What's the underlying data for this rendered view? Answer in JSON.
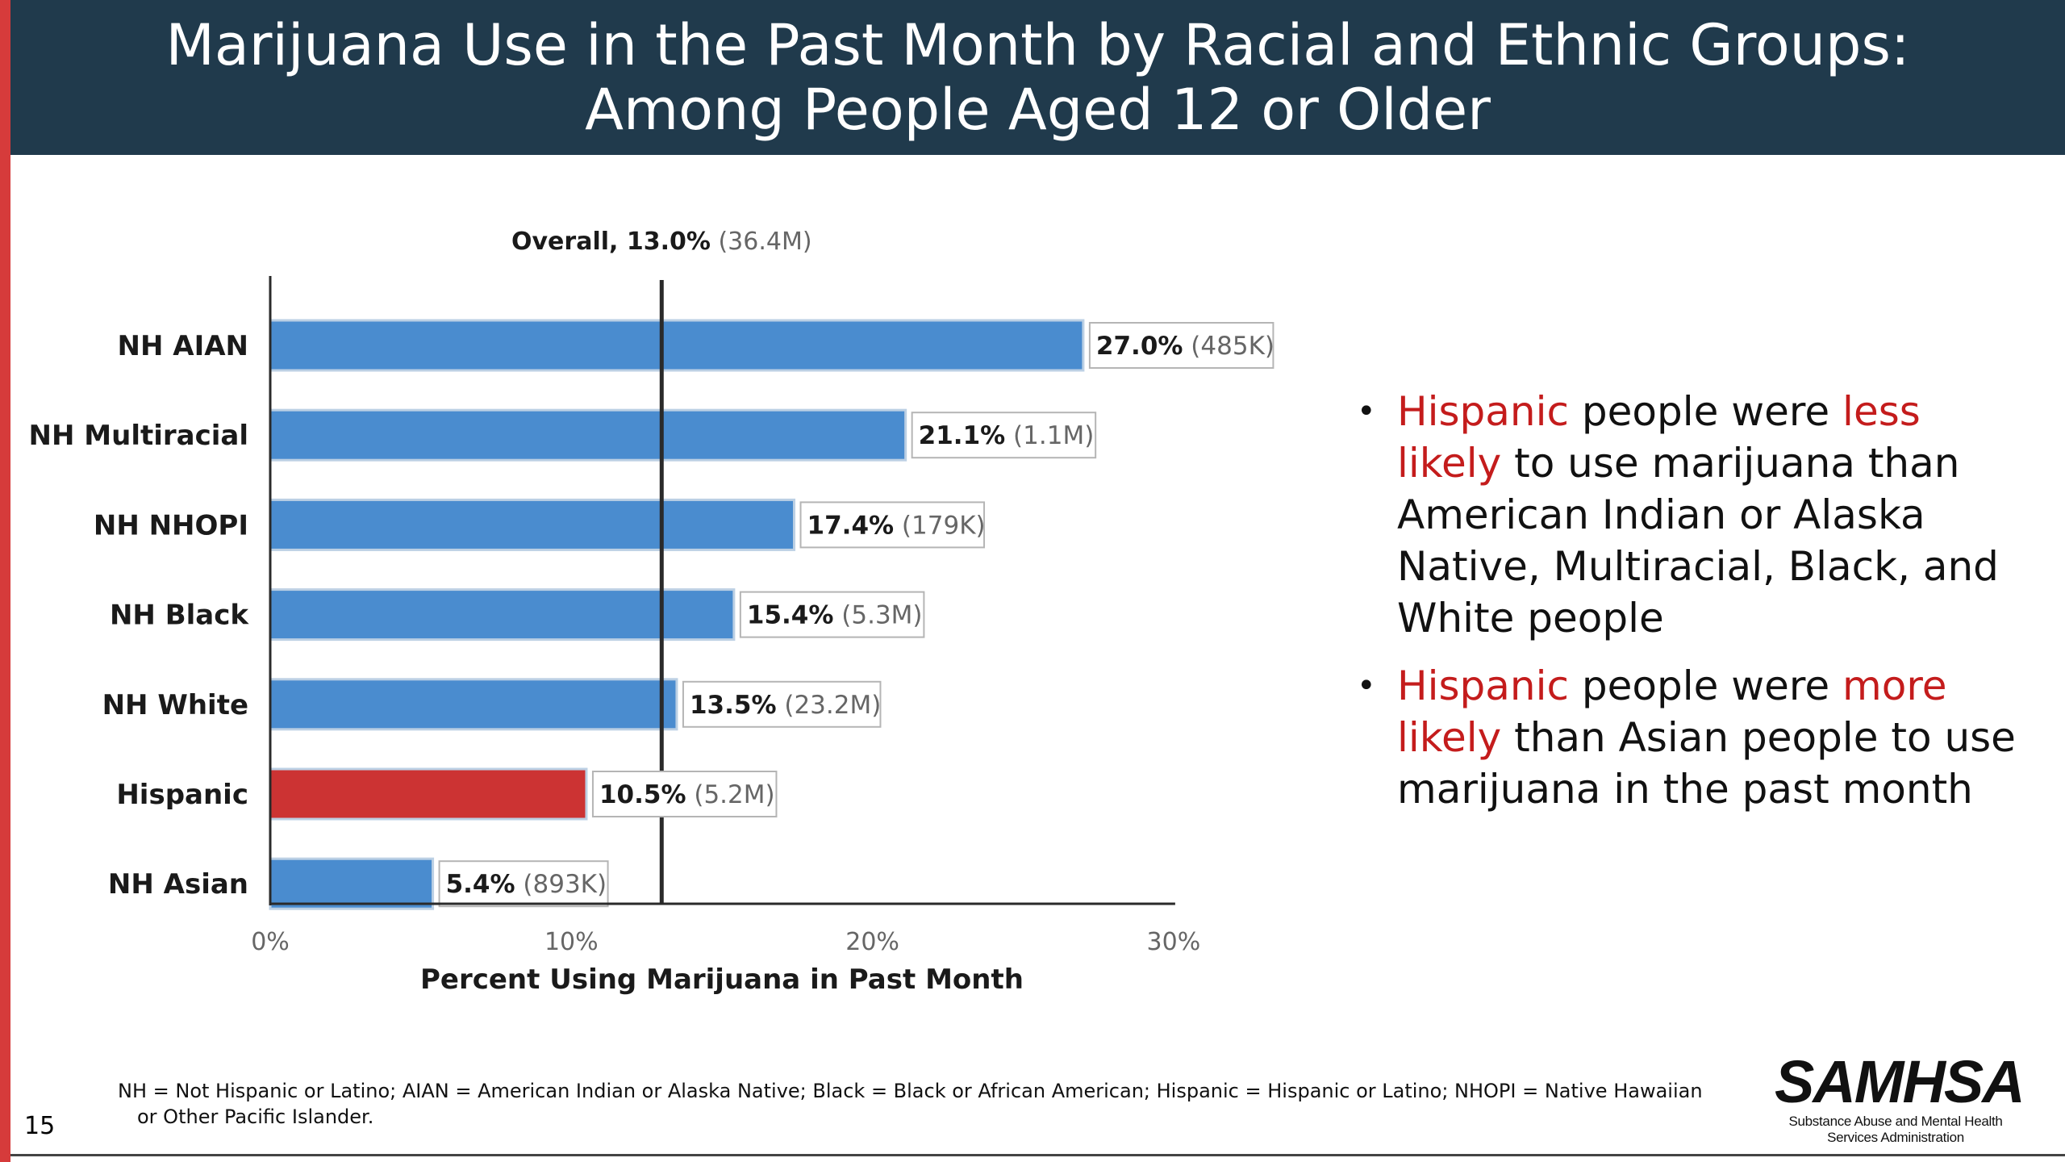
{
  "slide": {
    "title_line1": "Marijuana Use in the Past Month by Racial and Ethnic Groups:",
    "title_line2": "Among People Aged 12 or Older",
    "page_number": "15",
    "footnote": "NH = Not Hispanic or Latino; AIAN = American Indian or Alaska Native; Black = Black or African American; Hispanic = Hispanic or Latino; NHOPI = Native Hawaiian or Other Pacific Islander.",
    "logo_text": "SAMHSA",
    "logo_subtitle_line1": "Substance Abuse and Mental Health",
    "logo_subtitle_line2": "Services Administration",
    "colors": {
      "banner": "#203a4c",
      "accent": "#d63b3b",
      "highlight_text": "#c41c1c"
    }
  },
  "bullets": [
    {
      "parts": [
        {
          "text": "Hispanic",
          "highlight": true
        },
        {
          "text": " people were ",
          "highlight": false
        },
        {
          "text": "less likely",
          "highlight": true
        },
        {
          "text": " to use marijuana than American Indian or Alaska Native, Multiracial, Black, and White people",
          "highlight": false
        }
      ]
    },
    {
      "parts": [
        {
          "text": "Hispanic",
          "highlight": true
        },
        {
          "text": " people were ",
          "highlight": false
        },
        {
          "text": "more likely",
          "highlight": true
        },
        {
          "text": " than Asian people to use marijuana in the past month",
          "highlight": false
        }
      ]
    }
  ],
  "chart_data": {
    "type": "bar",
    "orientation": "horizontal",
    "title": "",
    "xlabel": "Percent Using Marijuana in Past Month",
    "ylabel": "",
    "xlim": [
      0,
      30
    ],
    "x_ticks": [
      0,
      10,
      20,
      30
    ],
    "x_tick_labels": [
      "0%",
      "10%",
      "20%",
      "30%"
    ],
    "grid": false,
    "reference_line": {
      "value": 13.0,
      "label_main": "Overall, 13.0%",
      "label_count": " (36.4M)"
    },
    "categories": [
      "NH AIAN",
      "NH Multiracial",
      "NH NHOPI",
      "NH Black",
      "NH White",
      "Hispanic",
      "NH Asian"
    ],
    "values": [
      27.0,
      21.1,
      17.4,
      15.4,
      13.5,
      10.5,
      5.4
    ],
    "value_labels": [
      "27.0%",
      "21.1%",
      "17.4%",
      "15.4%",
      "13.5%",
      "10.5%",
      "5.4%"
    ],
    "count_labels": [
      " (485K)",
      " (1.1M)",
      " (179K)",
      " (5.3M)",
      " (23.2M)",
      " (5.2M)",
      " (893K)"
    ],
    "bar_colors": [
      "#4a8ccf",
      "#4a8ccf",
      "#4a8ccf",
      "#4a8ccf",
      "#4a8ccf",
      "#cc3333",
      "#4a8ccf"
    ]
  }
}
